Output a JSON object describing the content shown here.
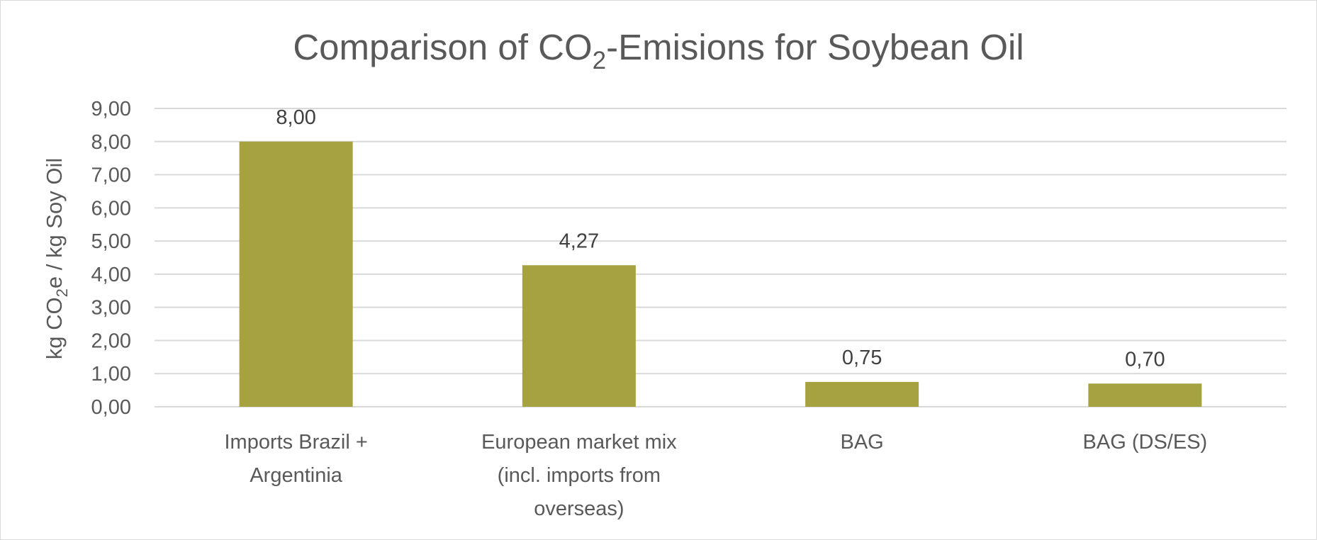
{
  "chart_data": {
    "type": "bar",
    "title": {
      "before": "Comparison of CO",
      "sub": "2",
      "after": "-Emisions for Soybean Oil"
    },
    "ylabel": {
      "before": "kg CO",
      "sub": "2",
      "after": "e / kg Soy Oil"
    },
    "xlabel": "",
    "categories": [
      [
        "Imports Brazil +",
        "Argentinia"
      ],
      [
        "European market mix",
        "(incl. imports from",
        "overseas)"
      ],
      [
        "BAG"
      ],
      [
        "BAG (DS/ES)"
      ]
    ],
    "values": [
      8.0,
      4.27,
      0.75,
      0.7
    ],
    "data_labels": [
      "8,00",
      "4,27",
      "0,75",
      "0,70"
    ],
    "yticks": [
      0,
      1,
      2,
      3,
      4,
      5,
      6,
      7,
      8,
      9
    ],
    "ytick_labels": [
      "0,00",
      "1,00",
      "2,00",
      "3,00",
      "4,00",
      "5,00",
      "6,00",
      "7,00",
      "8,00",
      "9,00"
    ],
    "ylim": [
      0,
      9
    ],
    "grid": true,
    "legend": "none",
    "colors": {
      "bar": "#A5A23F",
      "grid": "#D9D9D9",
      "text": "#595959",
      "data_label": "#404040"
    }
  }
}
